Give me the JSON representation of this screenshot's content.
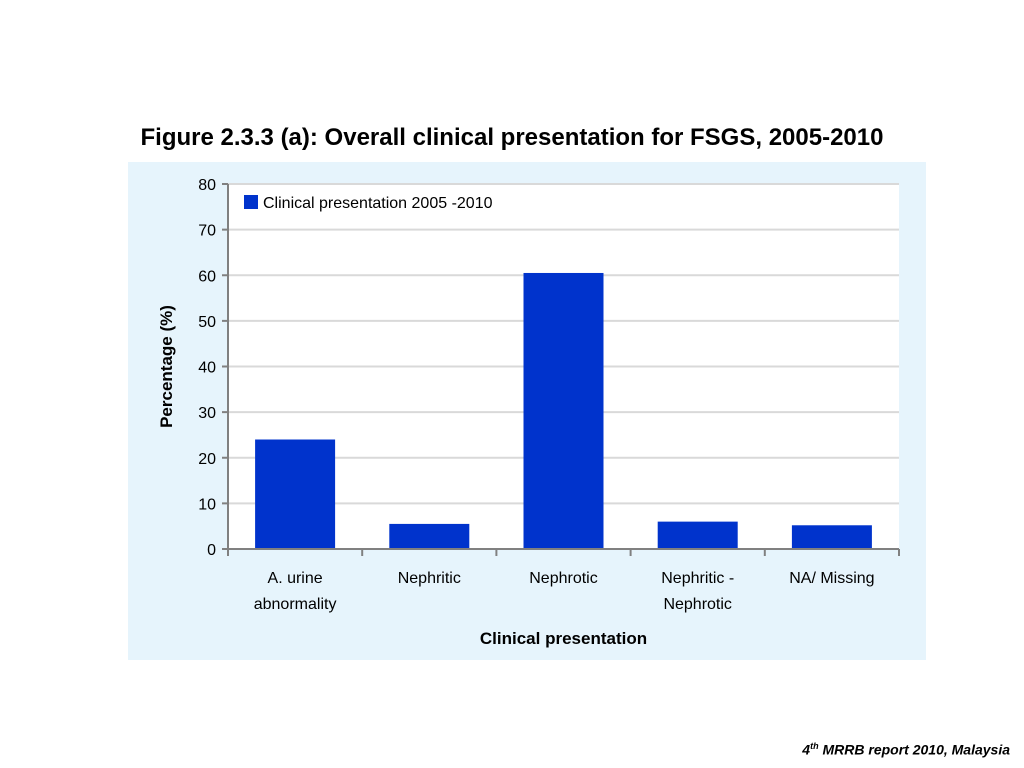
{
  "figure": {
    "title": "Figure 2.3.3 (a): Overall clinical presentation for FSGS, 2005-2010"
  },
  "source": {
    "ordinal_num": "4",
    "ordinal_suffix": "th",
    "text": " MRRB report 2010, Malaysia"
  },
  "colors": {
    "bar": "#0033cc",
    "panel_bg": "#e6f4fc",
    "gridline": "#d9d9d9",
    "axis": "#808080"
  },
  "chart_data": {
    "type": "bar",
    "title": "",
    "xlabel": "Clinical presentation",
    "ylabel": "Percentage (%)",
    "ylim": [
      0,
      80
    ],
    "yticks": [
      0,
      10,
      20,
      30,
      40,
      50,
      60,
      70,
      80
    ],
    "grid": true,
    "legend_position": "top-left",
    "categories": [
      [
        "A. urine",
        "abnormality"
      ],
      [
        "Nephritic"
      ],
      [
        "Nephrotic"
      ],
      [
        "Nephritic -",
        "Nephrotic"
      ],
      [
        "NA/ Missing"
      ]
    ],
    "series": [
      {
        "name": "Clinical presentation 2005 -2010",
        "values": [
          24,
          5.5,
          60.5,
          6,
          5.2
        ]
      }
    ]
  }
}
